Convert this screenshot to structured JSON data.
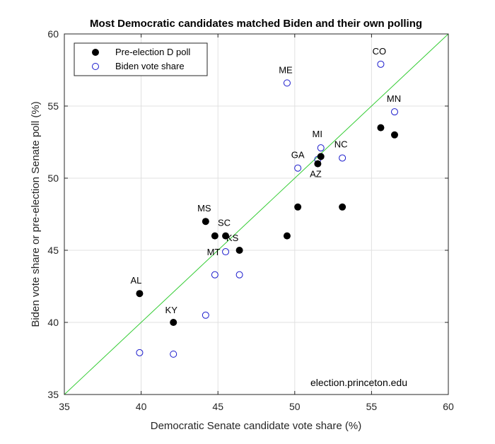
{
  "chart_data": {
    "type": "scatter",
    "title": "Most Democratic candidates matched Biden and their own polling",
    "xlabel": "Democratic Senate candidate vote share (%)",
    "ylabel": "Biden vote share or pre-election Senate poll (%)",
    "xlim": [
      35,
      60
    ],
    "ylim": [
      35,
      60
    ],
    "xticks": [
      "35",
      "40",
      "45",
      "50",
      "55",
      "60"
    ],
    "yticks": [
      "35",
      "40",
      "45",
      "50",
      "55",
      "60"
    ],
    "grid": true,
    "legend_position": "top-left",
    "annotation": "election.princeton.edu",
    "reference_line": {
      "from": [
        35,
        35
      ],
      "to": [
        60,
        60
      ],
      "color": "#33cc33"
    },
    "series": [
      {
        "name": "Pre-election D poll",
        "marker": "filled-circle",
        "color": "#000000",
        "points": [
          {
            "x": 39.9,
            "y": 42.0
          },
          {
            "x": 42.1,
            "y": 40.0
          },
          {
            "x": 44.2,
            "y": 47.0
          },
          {
            "x": 44.8,
            "y": 46.0
          },
          {
            "x": 45.5,
            "y": 46.0
          },
          {
            "x": 46.4,
            "y": 45.0
          },
          {
            "x": 49.5,
            "y": 46.0
          },
          {
            "x": 50.2,
            "y": 48.0
          },
          {
            "x": 51.5,
            "y": 51.0
          },
          {
            "x": 51.7,
            "y": 51.5
          },
          {
            "x": 53.1,
            "y": 48.0
          },
          {
            "x": 55.6,
            "y": 53.5
          },
          {
            "x": 56.5,
            "y": 53.0
          }
        ]
      },
      {
        "name": "Biden vote share",
        "marker": "open-circle",
        "color": "#1a1acc",
        "points": [
          {
            "x": 39.9,
            "y": 37.9
          },
          {
            "x": 42.1,
            "y": 37.8
          },
          {
            "x": 44.2,
            "y": 40.5
          },
          {
            "x": 44.8,
            "y": 43.3
          },
          {
            "x": 45.5,
            "y": 44.9
          },
          {
            "x": 46.4,
            "y": 43.3
          },
          {
            "x": 49.5,
            "y": 56.6
          },
          {
            "x": 50.2,
            "y": 50.7
          },
          {
            "x": 51.5,
            "y": 51.3
          },
          {
            "x": 51.7,
            "y": 52.1
          },
          {
            "x": 53.1,
            "y": 51.4
          },
          {
            "x": 55.6,
            "y": 57.9
          },
          {
            "x": 56.5,
            "y": 54.6
          }
        ]
      }
    ],
    "labels": [
      {
        "text": "AL",
        "x": 39.9,
        "y": 42.0
      },
      {
        "text": "KY",
        "x": 42.1,
        "y": 40.0
      },
      {
        "text": "MS",
        "x": 44.2,
        "y": 47.0
      },
      {
        "text": "SC",
        "x": 45.5,
        "y": 46.0
      },
      {
        "text": "KS",
        "x": 46.4,
        "y": 45.0
      },
      {
        "text": "MT",
        "x": 45.5,
        "y": 44.9
      },
      {
        "text": "ME",
        "x": 49.5,
        "y": 56.6
      },
      {
        "text": "GA",
        "x": 50.2,
        "y": 50.7
      },
      {
        "text": "MI",
        "x": 51.7,
        "y": 52.1
      },
      {
        "text": "AZ",
        "x": 51.5,
        "y": 51.0
      },
      {
        "text": "NC",
        "x": 53.1,
        "y": 51.4
      },
      {
        "text": "CO",
        "x": 55.6,
        "y": 57.9
      },
      {
        "text": "MN",
        "x": 56.5,
        "y": 54.6
      }
    ]
  }
}
